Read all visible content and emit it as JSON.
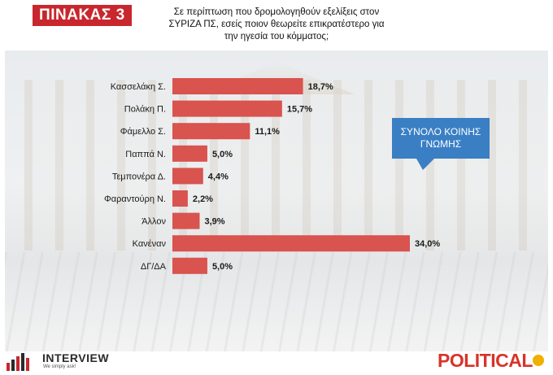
{
  "header": {
    "badge": "ΠΙΝΑΚΑΣ 3",
    "question_lines": [
      "Σε περίπτωση που δρομολογηθούν εξελίξεις στον",
      "ΣΥΡΙΖΑ ΠΣ, εσείς ποιον θεωρείτε επικρατέστερο για",
      "την ηγεσία του κόμματος;"
    ]
  },
  "callout": {
    "lines": [
      "ΣΥΝΟΛΟ ΚΟΙΝΗΣ",
      "ΓΝΩΜΗΣ"
    ],
    "color": "#3a7fc4"
  },
  "chart_data": {
    "type": "bar",
    "orientation": "horizontal",
    "title": "",
    "xlabel": "",
    "ylabel": "",
    "categories": [
      "Κασσελάκη Σ.",
      "Πολάκη Π.",
      "Φάμελλο Σ.",
      "Παππά Ν.",
      "Τεμπονέρα Δ.",
      "Φαραντούρη Ν.",
      "Άλλον",
      "Κανέναν",
      "ΔΓ/ΔΑ"
    ],
    "values": [
      18.7,
      15.7,
      11.1,
      5.0,
      4.4,
      2.2,
      3.9,
      34.0,
      5.0
    ],
    "value_labels": [
      "18,7%",
      "15,7%",
      "11,1%",
      "5,0%",
      "4,4%",
      "2,2%",
      "3,9%",
      "34,0%",
      "5,0%"
    ],
    "xlim": [
      0,
      34.0
    ],
    "grid": false,
    "bar_color": "#d9534f"
  },
  "footer": {
    "left_logo": "INTERVIEW",
    "left_tagline": "We simply ask!",
    "right_logo": "POLITICAL"
  }
}
